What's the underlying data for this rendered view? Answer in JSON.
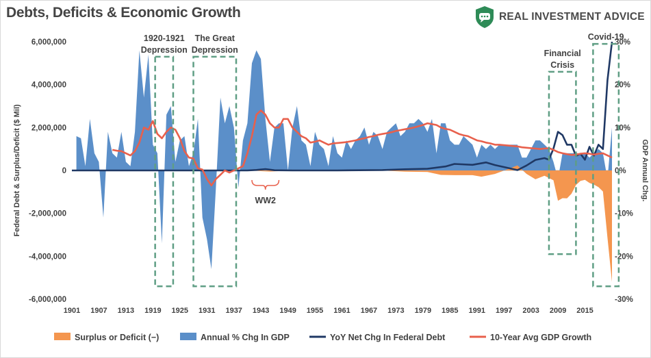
{
  "title": "Debts, Deficits & Economic Growth",
  "brand": {
    "name": "REAL INVESTMENT ADVICE",
    "logo_icon": "shield-chat-icon",
    "logo_color": "#2e8b57"
  },
  "chart_data": {
    "type": "area",
    "xlabel": "",
    "ylabel": "Federal Debt & Surplus/Deficit ($ Mil)",
    "y2label": "GDP Annual Chg.",
    "ylim": [
      -6000000,
      6000000
    ],
    "y2lim": [
      -30,
      30
    ],
    "yticks": [
      "6,000,000",
      "4,000,000",
      "2,000,000",
      "0",
      "-2,000,000",
      "-4,000,000",
      "-6,000,000"
    ],
    "y2ticks": [
      "30%",
      "20%",
      "10%",
      "0%",
      "-10%",
      "-20%",
      "-30%"
    ],
    "xticks": [
      "1901",
      "1907",
      "1913",
      "1919",
      "1925",
      "1931",
      "1937",
      "1943",
      "1949",
      "1955",
      "1961",
      "1967",
      "1973",
      "1979",
      "1985",
      "1991",
      "1997",
      "2003",
      "2009",
      "2015"
    ],
    "x_start": 1901,
    "x_end": 2021,
    "legend_position": "bottom",
    "grid": false,
    "series": [
      {
        "name": "Surplus or Deficit (−)",
        "color": "#f4964f",
        "axis": "left",
        "x": [
          1901,
          1910,
          1920,
          1930,
          1941,
          1945,
          1950,
          1960,
          1970,
          1975,
          1980,
          1983,
          1986,
          1990,
          1992,
          1995,
          1998,
          2000,
          2002,
          2004,
          2006,
          2008,
          2009,
          2010,
          2011,
          2012,
          2013,
          2014,
          2015,
          2016,
          2017,
          2018,
          2019,
          2020,
          2021
        ],
        "values": [
          0,
          0,
          0,
          0,
          -10000,
          -50000,
          0,
          0,
          -2000,
          -53000,
          -74000,
          -208000,
          -221000,
          -221000,
          -290000,
          -164000,
          69000,
          236000,
          -158000,
          -413000,
          -248000,
          -459000,
          -1413000,
          -1294000,
          -1300000,
          -1087000,
          -680000,
          -485000,
          -442000,
          -585000,
          -665000,
          -779000,
          -984000,
          -3132000,
          -5200000
        ]
      },
      {
        "name": "Annual % Chg In GDP",
        "color": "#5b8fc9",
        "axis": "right",
        "x": [
          1902,
          1903,
          1904,
          1905,
          1906,
          1907,
          1908,
          1909,
          1910,
          1911,
          1912,
          1913,
          1914,
          1915,
          1916,
          1917,
          1918,
          1919,
          1920,
          1921,
          1922,
          1923,
          1924,
          1925,
          1926,
          1927,
          1928,
          1929,
          1930,
          1931,
          1932,
          1933,
          1934,
          1935,
          1936,
          1937,
          1938,
          1939,
          1940,
          1941,
          1942,
          1943,
          1944,
          1945,
          1946,
          1947,
          1948,
          1949,
          1950,
          1951,
          1952,
          1953,
          1954,
          1955,
          1956,
          1957,
          1958,
          1959,
          1960,
          1961,
          1962,
          1963,
          1964,
          1965,
          1966,
          1967,
          1968,
          1969,
          1970,
          1971,
          1972,
          1973,
          1974,
          1975,
          1976,
          1977,
          1978,
          1979,
          1980,
          1981,
          1982,
          1983,
          1984,
          1985,
          1986,
          1987,
          1988,
          1989,
          1990,
          1991,
          1992,
          1993,
          1994,
          1995,
          1996,
          1997,
          1998,
          1999,
          2000,
          2001,
          2002,
          2003,
          2004,
          2005,
          2006,
          2007,
          2008,
          2009,
          2010,
          2011,
          2012,
          2013,
          2014,
          2015,
          2016,
          2017,
          2018,
          2019,
          2020,
          2021
        ],
        "values": [
          8,
          7.5,
          1,
          12,
          4,
          2,
          -11,
          9,
          4,
          3,
          9,
          2,
          1,
          9,
          28,
          17,
          27,
          6,
          4,
          -17,
          13,
          15,
          2,
          7,
          8,
          1,
          4,
          12,
          -11,
          -16,
          -23,
          -4,
          17,
          11,
          15,
          10,
          -4,
          7,
          11,
          25,
          28,
          26,
          12,
          2,
          10,
          11,
          11,
          0,
          10,
          15,
          7,
          6,
          1,
          9,
          6,
          5,
          1,
          8,
          4,
          3,
          7,
          5,
          7,
          8,
          10,
          6,
          9,
          8,
          5,
          9,
          10,
          11,
          8,
          9,
          11,
          11,
          12,
          11,
          9,
          12,
          4,
          11,
          11,
          7,
          6,
          6,
          8,
          7,
          6,
          3,
          6,
          5,
          6,
          5,
          6,
          6,
          6,
          6,
          6,
          3,
          3,
          5,
          7,
          7,
          6,
          5,
          2,
          -2,
          4,
          4,
          4,
          4,
          4,
          4,
          3,
          4,
          5,
          4,
          -2,
          10
        ]
      },
      {
        "name": "YoY Net Chg In Federal Debt",
        "color": "#1f3864",
        "axis": "left",
        "x": [
          1901,
          1940,
          1942,
          1944,
          1946,
          1950,
          1960,
          1970,
          1975,
          1980,
          1984,
          1986,
          1990,
          1993,
          1995,
          1998,
          2000,
          2002,
          2004,
          2006,
          2007,
          2008,
          2009,
          2010,
          2011,
          2012,
          2013,
          2014,
          2015,
          2016,
          2017,
          2018,
          2019,
          2020,
          2021
        ],
        "values": [
          0,
          0,
          23000,
          64000,
          11000,
          0,
          0,
          19000,
          53000,
          81000,
          185000,
          302000,
          263000,
          374000,
          251000,
          113000,
          17000,
          229000,
          490000,
          574000,
          500000,
          1017000,
          1800000,
          1650000,
          1200000,
          1200000,
          680000,
          780000,
          500000,
          1100000,
          690000,
          1200000,
          1000000,
          4200000,
          6000000
        ]
      },
      {
        "name": "10-Year Avg GDP Growth",
        "color": "#e8604c",
        "axis": "right",
        "x": [
          1910,
          1911,
          1912,
          1913,
          1914,
          1915,
          1916,
          1917,
          1918,
          1919,
          1920,
          1921,
          1922,
          1923,
          1924,
          1925,
          1926,
          1927,
          1928,
          1929,
          1930,
          1931,
          1932,
          1933,
          1934,
          1935,
          1936,
          1937,
          1938,
          1939,
          1940,
          1941,
          1942,
          1943,
          1944,
          1945,
          1946,
          1947,
          1948,
          1949,
          1950,
          1951,
          1952,
          1953,
          1954,
          1955,
          1956,
          1957,
          1958,
          1959,
          1960,
          1961,
          1962,
          1963,
          1964,
          1965,
          1966,
          1967,
          1968,
          1969,
          1970,
          1971,
          1972,
          1973,
          1974,
          1975,
          1976,
          1977,
          1978,
          1979,
          1980,
          1981,
          1982,
          1983,
          1984,
          1985,
          1986,
          1987,
          1988,
          1989,
          1990,
          1991,
          1992,
          1993,
          1994,
          1995,
          1996,
          1997,
          1998,
          1999,
          2000,
          2001,
          2002,
          2003,
          2004,
          2005,
          2006,
          2007,
          2008,
          2009,
          2010,
          2011,
          2012,
          2013,
          2014,
          2015,
          2016,
          2017,
          2018,
          2019,
          2020,
          2021
        ],
        "values": [
          4.8,
          4.6,
          4.5,
          4,
          3.5,
          4.5,
          6.5,
          10,
          9.5,
          11.5,
          8.5,
          7.5,
          9,
          10,
          9.5,
          7.5,
          4.5,
          3,
          2.8,
          0.5,
          0.2,
          -2,
          -3.5,
          -2,
          -1,
          0,
          -0.5,
          0,
          0.5,
          1,
          4,
          8,
          13,
          14,
          13,
          11,
          10,
          10,
          12,
          12,
          10,
          9,
          8,
          7.5,
          6.5,
          6.7,
          7,
          6.5,
          6,
          6.3,
          6.4,
          6.5,
          6.6,
          6.8,
          7,
          7.3,
          7.5,
          7.8,
          8,
          8.3,
          8.5,
          8.7,
          8.9,
          9.2,
          9.4,
          9.6,
          9.8,
          10,
          10.3,
          10.6,
          11,
          10.8,
          10.6,
          10,
          9.7,
          9.5,
          9,
          8.5,
          8.2,
          8,
          7.5,
          7,
          6.8,
          6.5,
          6.3,
          6,
          6,
          5.9,
          5.8,
          5.7,
          5.6,
          5.4,
          5.3,
          5.2,
          5.1,
          5,
          5.1,
          5.2,
          4.8,
          4.3,
          4,
          3.8,
          3.6,
          3.7,
          3.9,
          4,
          3.9,
          3.7,
          3.9,
          4,
          3.5,
          3
        ]
      }
    ],
    "annotations": [
      {
        "text": [
          "1920-1921",
          "Depression"
        ],
        "x_range": [
          1919.5,
          1923.5
        ],
        "y_range": [
          -27,
          26.5
        ]
      },
      {
        "text": [
          "The Great",
          "Depression"
        ],
        "x_range": [
          1928,
          1937.5
        ],
        "y_range": [
          -27,
          26.5
        ]
      },
      {
        "text": [
          "Financial",
          "Crisis"
        ],
        "x_range": [
          2007,
          2013
        ],
        "y_range": [
          -19.5,
          23
        ]
      },
      {
        "text": [
          "Covid-19"
        ],
        "x_range": [
          2016.8,
          2022.5
        ],
        "y_range": [
          -27,
          29.5
        ]
      },
      {
        "text": [
          "WW2"
        ],
        "x_range": [
          1941,
          1947
        ],
        "type": "brace"
      }
    ]
  }
}
